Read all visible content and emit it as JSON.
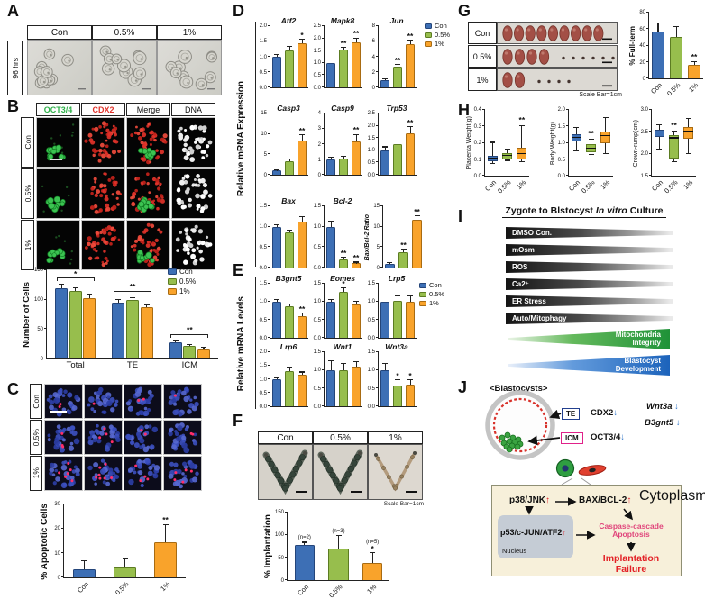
{
  "groups": [
    "Con",
    "0.5%",
    "1%"
  ],
  "colors": {
    "con": "#3D6FB5",
    "con_border": "#24457A",
    "half": "#97BE4D",
    "half_border": "#5C7C22",
    "one": "#F9A32B",
    "one_border": "#A86B12",
    "green_text": "#2FB14A",
    "red_text": "#E2342C",
    "blue_arrow": "#2E74C8",
    "red_arrow": "#E01F26",
    "pink_text": "#E0457B",
    "fail_red": "#E32126",
    "te_border": "#23408F",
    "icm_border": "#E0218A"
  },
  "panels": {
    "a": {
      "label": "A",
      "row_label": "96 hrs",
      "columns": [
        "Con",
        "0.5%",
        "1%"
      ]
    },
    "b": {
      "label": "B",
      "col_headers": [
        "OCT3/4",
        "CDX2",
        "Merge",
        "DNA"
      ],
      "rows": [
        "Con",
        "0.5%",
        "1%"
      ]
    },
    "c": {
      "label": "C",
      "rows": [
        "Con",
        "0.5%",
        "1%"
      ]
    },
    "d": {
      "label": "D",
      "ylabel": "Relative mRNA Expression"
    },
    "e": {
      "label": "E",
      "ylabel": "Relative mRNA Levels"
    },
    "f": {
      "label": "F",
      "columns": [
        "Con",
        "0.5%",
        "1%"
      ],
      "scale_note": "Scale Bar=1cm"
    },
    "g": {
      "label": "G",
      "rows": [
        "Con",
        "0.5%",
        "1%"
      ],
      "scale_note": "Scale Bar=1cm"
    },
    "h": {
      "label": "H"
    },
    "i": {
      "label": "I",
      "title_prefix": "Zygote to Blstocyst ",
      "title_italic": "In vitro",
      "title_suffix": " Culture",
      "wedges": [
        "DMSO Con.",
        "mOsm",
        "ROS",
        "Ca2⁺",
        "ER Stress",
        "Auto/Mitophagy"
      ],
      "green_wedge": "Mitochondria Integrity",
      "blue_wedge": "Blastocyst Development"
    },
    "j": {
      "label": "J",
      "heading": "<Blastocysts>",
      "te": "TE",
      "icm": "ICM",
      "cdx2": "CDX2",
      "oct34": "OCT3/4",
      "wnt3a": "Wnt3a",
      "b3gnt5": "B3gnt5",
      "arrow_up": "↑",
      "arrow_down": "↓",
      "cytoplasm": "Cytoplasm",
      "nucleus": "Nucleus",
      "p38": "p38/JNK",
      "bax_bcl2": "BAX/BCL-2",
      "p53": "p53/c-JUN/ATF2",
      "caspase1": "Caspase-cascade",
      "caspase2": "Apoptosis",
      "failure1": "Implantation",
      "failure2": "Failure"
    }
  },
  "chart_data": {
    "cells": {
      "type": "groupedbar",
      "title": "",
      "ylabel": "Number of Cells",
      "yls": 9.5,
      "axw": 16,
      "xrot": false,
      "ylim": [
        0,
        150
      ],
      "yticks": [
        "0",
        "50",
        "100",
        "150"
      ],
      "categories": [
        "Total",
        "TE",
        "ICM"
      ],
      "series": [
        {
          "name": "Con",
          "values": [
            120,
            95,
            27
          ],
          "err": [
            5,
            4,
            2
          ]
        },
        {
          "name": "0.5%",
          "values": [
            115,
            100,
            21
          ],
          "err": [
            4,
            3,
            2
          ]
        },
        {
          "name": "1%",
          "values": [
            103,
            87,
            16
          ],
          "err": [
            5,
            4,
            2
          ]
        }
      ],
      "group_sig": [
        "*",
        "**",
        "**"
      ]
    },
    "apoptotic": {
      "type": "bar",
      "ylabel": "% Apoptotic Cells",
      "yls": 10,
      "axw": 15,
      "bw": 18,
      "ylim": [
        0,
        30
      ],
      "yticks": [
        "0",
        "10",
        "20",
        "30"
      ],
      "categories": [
        "Con",
        "0.5%",
        "1%"
      ],
      "values": [
        3.5,
        4,
        14.5
      ],
      "err": [
        3,
        3.5,
        7
      ],
      "sig": [
        "",
        "",
        "**"
      ]
    },
    "atf2": {
      "type": "mini",
      "title": "Atf2",
      "axw": 13,
      "bw": 26,
      "ylim": [
        0,
        2
      ],
      "yticks": [
        "0.0",
        "0.5",
        "1.0",
        "1.5",
        "2.0"
      ],
      "values": [
        1.0,
        1.2,
        1.45
      ],
      "err": [
        0.07,
        0.12,
        0.1
      ],
      "sig": [
        "",
        "",
        "*"
      ]
    },
    "mapk8": {
      "type": "mini",
      "title": "Mapk8",
      "axw": 13,
      "bw": 26,
      "ylim": [
        0,
        2.5
      ],
      "yticks": [
        "0.0",
        "0.5",
        "1.0",
        "1.5",
        "2.0",
        "2.5"
      ],
      "values": [
        1.0,
        1.55,
        1.85
      ],
      "err": [
        0,
        0.07,
        0.15
      ],
      "sig": [
        "",
        "**",
        "**"
      ]
    },
    "jun": {
      "type": "mini",
      "title": "Jun",
      "axw": 13,
      "bw": 26,
      "ylim": [
        0,
        8
      ],
      "yticks": [
        "0",
        "2",
        "4",
        "6",
        "8"
      ],
      "values": [
        1.0,
        2.7,
        5.6
      ],
      "err": [
        0.08,
        0.25,
        0.45
      ],
      "sig": [
        "",
        "**",
        "**"
      ]
    },
    "casp3": {
      "type": "mini",
      "title": "Casp3",
      "axw": 13,
      "bw": 26,
      "ylim": [
        0,
        15
      ],
      "yticks": [
        "0",
        "5",
        "10",
        "15"
      ],
      "values": [
        1.0,
        3.3,
        8.3
      ],
      "err": [
        0.15,
        0.35,
        1.4
      ],
      "sig": [
        "",
        "",
        "**"
      ]
    },
    "casp9": {
      "type": "mini",
      "title": "Casp9",
      "axw": 13,
      "bw": 26,
      "ylim": [
        0,
        4
      ],
      "yticks": [
        "0",
        "1",
        "2",
        "3",
        "4"
      ],
      "values": [
        1.0,
        1.05,
        2.2
      ],
      "err": [
        0.1,
        0.12,
        0.4
      ],
      "sig": [
        "",
        "",
        "**"
      ]
    },
    "trp53": {
      "type": "mini",
      "title": "Trp53",
      "axw": 13,
      "bw": 26,
      "ylim": [
        0,
        2.5
      ],
      "yticks": [
        "0.0",
        "0.5",
        "1.0",
        "1.5",
        "2.0",
        "2.5"
      ],
      "values": [
        1.0,
        1.25,
        1.7
      ],
      "err": [
        0.12,
        0.1,
        0.25
      ],
      "sig": [
        "",
        "",
        "**"
      ]
    },
    "bax": {
      "type": "mini",
      "title": "Bax",
      "axw": 13,
      "bw": 26,
      "ylim": [
        0,
        1.5
      ],
      "yticks": [
        "0.0",
        "0.5",
        "1.0",
        "1.5"
      ],
      "values": [
        1.0,
        0.87,
        1.13
      ],
      "err": [
        0.04,
        0.03,
        0.1
      ]
    },
    "bcl2": {
      "type": "mini",
      "title": "Bcl-2",
      "axw": 13,
      "bw": 26,
      "ylim": [
        0,
        1.5
      ],
      "yticks": [
        "0.0",
        "0.5",
        "1.0",
        "1.5"
      ],
      "values": [
        1.0,
        0.2,
        0.1
      ],
      "err": [
        0.13,
        0.04,
        0.02
      ],
      "sig": [
        "",
        "**",
        "**"
      ]
    },
    "baxbcl2": {
      "type": "mini",
      "ylabel": "Bax/Bcl-2 Ratio",
      "yls": 7,
      "yli": true,
      "axw": 13,
      "bw": 26,
      "ylim": [
        0,
        15
      ],
      "yticks": [
        "0",
        "5",
        "10",
        "15"
      ],
      "values": [
        0.9,
        3.8,
        11.8
      ],
      "err": [
        0.1,
        0.5,
        0.7
      ],
      "sig": [
        "",
        "**",
        "**"
      ]
    },
    "b3gnt5": {
      "type": "mini",
      "title": "B3gnt5",
      "axw": 13,
      "bw": 26,
      "ylim": [
        0,
        1.5
      ],
      "yticks": [
        "0.0",
        "0.5",
        "1.0",
        "1.5"
      ],
      "values": [
        1.0,
        0.88,
        0.6
      ],
      "err": [
        0.05,
        0.05,
        0.07
      ],
      "sig": [
        "",
        "",
        "**"
      ]
    },
    "eomes": {
      "type": "mini",
      "title": "Eomes",
      "axw": 13,
      "bw": 26,
      "ylim": [
        0,
        1.5
      ],
      "yticks": [
        "0.0",
        "0.5",
        "1.0",
        "1.5"
      ],
      "values": [
        1.0,
        1.28,
        0.93
      ],
      "err": [
        0.04,
        0.09,
        0.06
      ],
      "sig": [
        "",
        "*",
        ""
      ]
    },
    "lrp5": {
      "type": "mini",
      "title": "Lrp5",
      "axw": 13,
      "bw": 26,
      "ylim": [
        0,
        1.5
      ],
      "yticks": [
        "0.0",
        "0.5",
        "1.0",
        "1.5"
      ],
      "values": [
        1.0,
        1.03,
        1.01
      ],
      "err": [
        0,
        0.12,
        0.13
      ]
    },
    "lrp6": {
      "type": "mini",
      "title": "Lrp6",
      "axw": 13,
      "bw": 26,
      "ylim": [
        0,
        2
      ],
      "yticks": [
        "0.0",
        "0.5",
        "1.0",
        "1.5",
        "2.0"
      ],
      "values": [
        1.0,
        1.3,
        1.18
      ],
      "err": [
        0.04,
        0.12,
        0.07
      ]
    },
    "wnt1": {
      "type": "mini",
      "title": "Wnt1",
      "axw": 13,
      "bw": 26,
      "ylim": [
        0,
        1.5
      ],
      "yticks": [
        "0.0",
        "0.5",
        "1.0",
        "1.5"
      ],
      "values": [
        1.0,
        1.0,
        1.1
      ],
      "err": [
        0.25,
        0.17,
        0.13
      ]
    },
    "wnt3a": {
      "type": "mini",
      "title": "Wnt3a",
      "axw": 13,
      "bw": 26,
      "ylim": [
        0,
        1.5
      ],
      "yticks": [
        "0.0",
        "0.5",
        "1.0",
        "1.5"
      ],
      "values": [
        1.0,
        0.58,
        0.6
      ],
      "err": [
        0.17,
        0.14,
        0.12
      ],
      "sig": [
        "",
        "*",
        "*"
      ]
    },
    "implantation": {
      "type": "bar",
      "ylabel": "% Implantation",
      "yls": 10,
      "axw": 15,
      "bw": 20,
      "ylim": [
        0,
        150
      ],
      "yticks": [
        "0",
        "50",
        "100",
        "150"
      ],
      "categories": [
        "Con",
        "0.5%",
        "1%"
      ],
      "values": [
        78,
        70,
        38
      ],
      "err": [
        5,
        28,
        22
      ],
      "notes": [
        "(n=2)",
        "(n=3)",
        "(n=5)"
      ],
      "sig": [
        "",
        "",
        "*"
      ]
    },
    "fullterm": {
      "type": "bar",
      "ylabel": "% Full-term",
      "yls": 8,
      "axw": 13,
      "bw": 22,
      "ylim": [
        0,
        80
      ],
      "yticks": [
        "0",
        "20",
        "40",
        "60",
        "80"
      ],
      "categories": [
        "Con",
        "0.5%",
        "1%"
      ],
      "values": [
        57,
        50,
        16
      ],
      "err": [
        10,
        12,
        4
      ],
      "sig": [
        "",
        "",
        "**"
      ]
    },
    "placenta": {
      "type": "box",
      "ylabel": "Placenta Weight(g)",
      "yls": 7,
      "ylb": false,
      "axw": 13,
      "ylim": [
        0,
        0.4
      ],
      "yticks": [
        "0.0",
        "0.1",
        "0.2",
        "0.3",
        "0.4"
      ],
      "categories": [
        "Con",
        "0.5%",
        "1%"
      ],
      "boxes": [
        {
          "low": 0.07,
          "q1": 0.09,
          "med": 0.105,
          "q3": 0.12,
          "high": 0.2,
          "sig": ""
        },
        {
          "low": 0.09,
          "q1": 0.1,
          "med": 0.12,
          "q3": 0.135,
          "high": 0.16,
          "sig": ""
        },
        {
          "low": 0.08,
          "q1": 0.1,
          "med": 0.13,
          "q3": 0.17,
          "high": 0.3,
          "sig": "**"
        }
      ]
    },
    "bodyweight": {
      "type": "box",
      "ylabel": "Body Weight(g)",
      "yls": 7,
      "ylb": false,
      "axw": 13,
      "ylim": [
        0,
        2
      ],
      "yticks": [
        "0.0",
        "0.5",
        "1.0",
        "1.5",
        "2.0"
      ],
      "categories": [
        "Con",
        "0.5%",
        "1%"
      ],
      "boxes": [
        {
          "low": 0.75,
          "q1": 1.05,
          "med": 1.15,
          "q3": 1.25,
          "high": 1.45,
          "sig": ""
        },
        {
          "low": 0.63,
          "q1": 0.72,
          "med": 0.82,
          "q3": 0.95,
          "high": 1.1,
          "sig": "**"
        },
        {
          "low": 0.65,
          "q1": 1.0,
          "med": 1.2,
          "q3": 1.35,
          "high": 1.75,
          "sig": ""
        }
      ]
    },
    "crownrump": {
      "type": "box",
      "ylabel": "Crown-rump(cm)",
      "yls": 7,
      "ylb": false,
      "axw": 13,
      "ylim": [
        1.5,
        3
      ],
      "yticks": [
        "1.5",
        "2.0",
        "2.5",
        "3.0"
      ],
      "categories": [
        "Con",
        "0.5%",
        "1%"
      ],
      "boxes": [
        {
          "low": 2.1,
          "q1": 2.38,
          "med": 2.48,
          "q3": 2.55,
          "high": 2.65,
          "sig": ""
        },
        {
          "low": 1.8,
          "q1": 1.9,
          "med": 2.35,
          "q3": 2.42,
          "high": 2.5,
          "sig": "**"
        },
        {
          "low": 2.0,
          "q1": 2.35,
          "med": 2.5,
          "q3": 2.6,
          "high": 2.8,
          "sig": ""
        }
      ]
    }
  }
}
